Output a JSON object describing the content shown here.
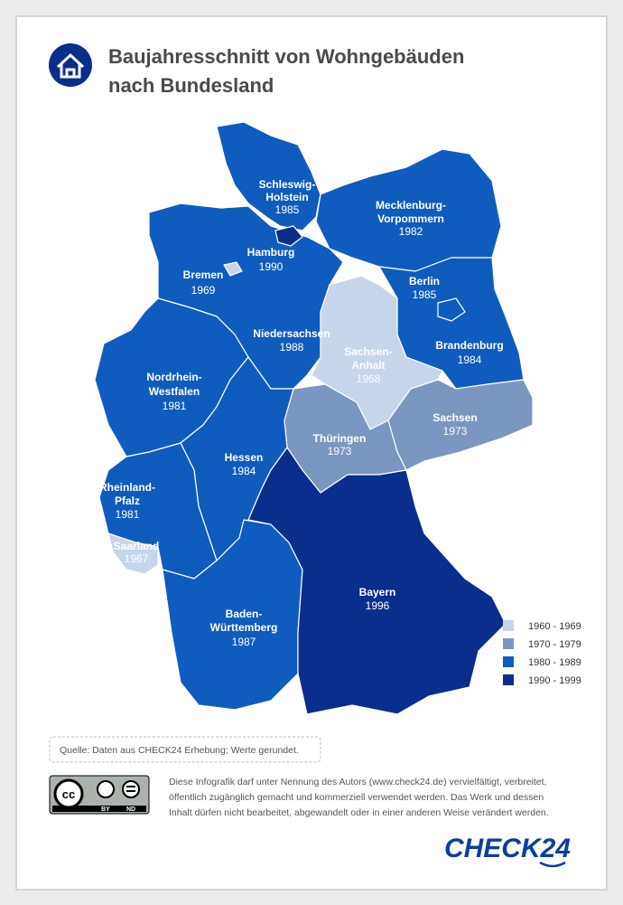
{
  "header": {
    "title": [
      "Baujahresschnitt von Wohngebäuden",
      "nach Bundesland"
    ]
  },
  "regions": [
    {
      "name": [
        "Schleswig-",
        "Holstein"
      ],
      "year": "1985",
      "color": "#0f5cbe"
    },
    {
      "name": [
        "Mecklenburg-",
        "Vorpommern"
      ],
      "year": "1982",
      "color": "#0f5cbe"
    },
    {
      "name": [
        "Hamburg"
      ],
      "year": "1990",
      "color": "#0a2e8c"
    },
    {
      "name": [
        "Bremen"
      ],
      "year": "1969",
      "color": "#c7d5ea"
    },
    {
      "name": [
        "Niedersachsen"
      ],
      "year": "1988",
      "color": "#0f5cbe"
    },
    {
      "name": [
        "Berlin"
      ],
      "year": "1985",
      "color": "#0f5cbe"
    },
    {
      "name": [
        "Sachsen-",
        "Anhalt"
      ],
      "year": "1968",
      "color": "#c7d5ea"
    },
    {
      "name": [
        "Brandenburg"
      ],
      "year": "1984",
      "color": "#0f5cbe"
    },
    {
      "name": [
        "Nordrhein-",
        "Westfalen"
      ],
      "year": "1981",
      "color": "#0f5cbe"
    },
    {
      "name": [
        "Sachsen"
      ],
      "year": "1973",
      "color": "#7b96c0"
    },
    {
      "name": [
        "Thüringen"
      ],
      "year": "1973",
      "color": "#7b96c0"
    },
    {
      "name": [
        "Hessen"
      ],
      "year": "1984",
      "color": "#0f5cbe"
    },
    {
      "name": [
        "Rheinland-",
        "Pfalz"
      ],
      "year": "1981",
      "color": "#0f5cbe"
    },
    {
      "name": [
        "Saarland"
      ],
      "year": "1967",
      "color": "#c7d5ea"
    },
    {
      "name": [
        "Bayern"
      ],
      "year": "1996",
      "color": "#0a2e8c"
    },
    {
      "name": [
        "Baden-",
        "Württemberg"
      ],
      "year": "1987",
      "color": "#0f5cbe"
    }
  ],
  "legend": [
    {
      "label": "1960 - 1969",
      "color": "#c7d5ea"
    },
    {
      "label": "1970 - 1979",
      "color": "#7b96c0"
    },
    {
      "label": "1980 - 1989",
      "color": "#0f5cbe"
    },
    {
      "label": "1990 - 1999",
      "color": "#0a2e8c"
    }
  ],
  "source": "Quelle: Daten aus CHECK24 Erhebung; Werte gerundet.",
  "license": {
    "badge": [
      "BY",
      "ND"
    ],
    "text": [
      "Diese Infografik darf unter Nennung des Autors (www.check24.de) vervielfältigt, verbreitet,",
      "öffentlich zugänglich gemacht und kommerziell verwendet werden. Das Werk und dessen",
      "Inhalt dürfen nicht bearbeitet, abgewandelt oder in einer anderen Weise verändert werden."
    ]
  },
  "logo": "CHECK24"
}
